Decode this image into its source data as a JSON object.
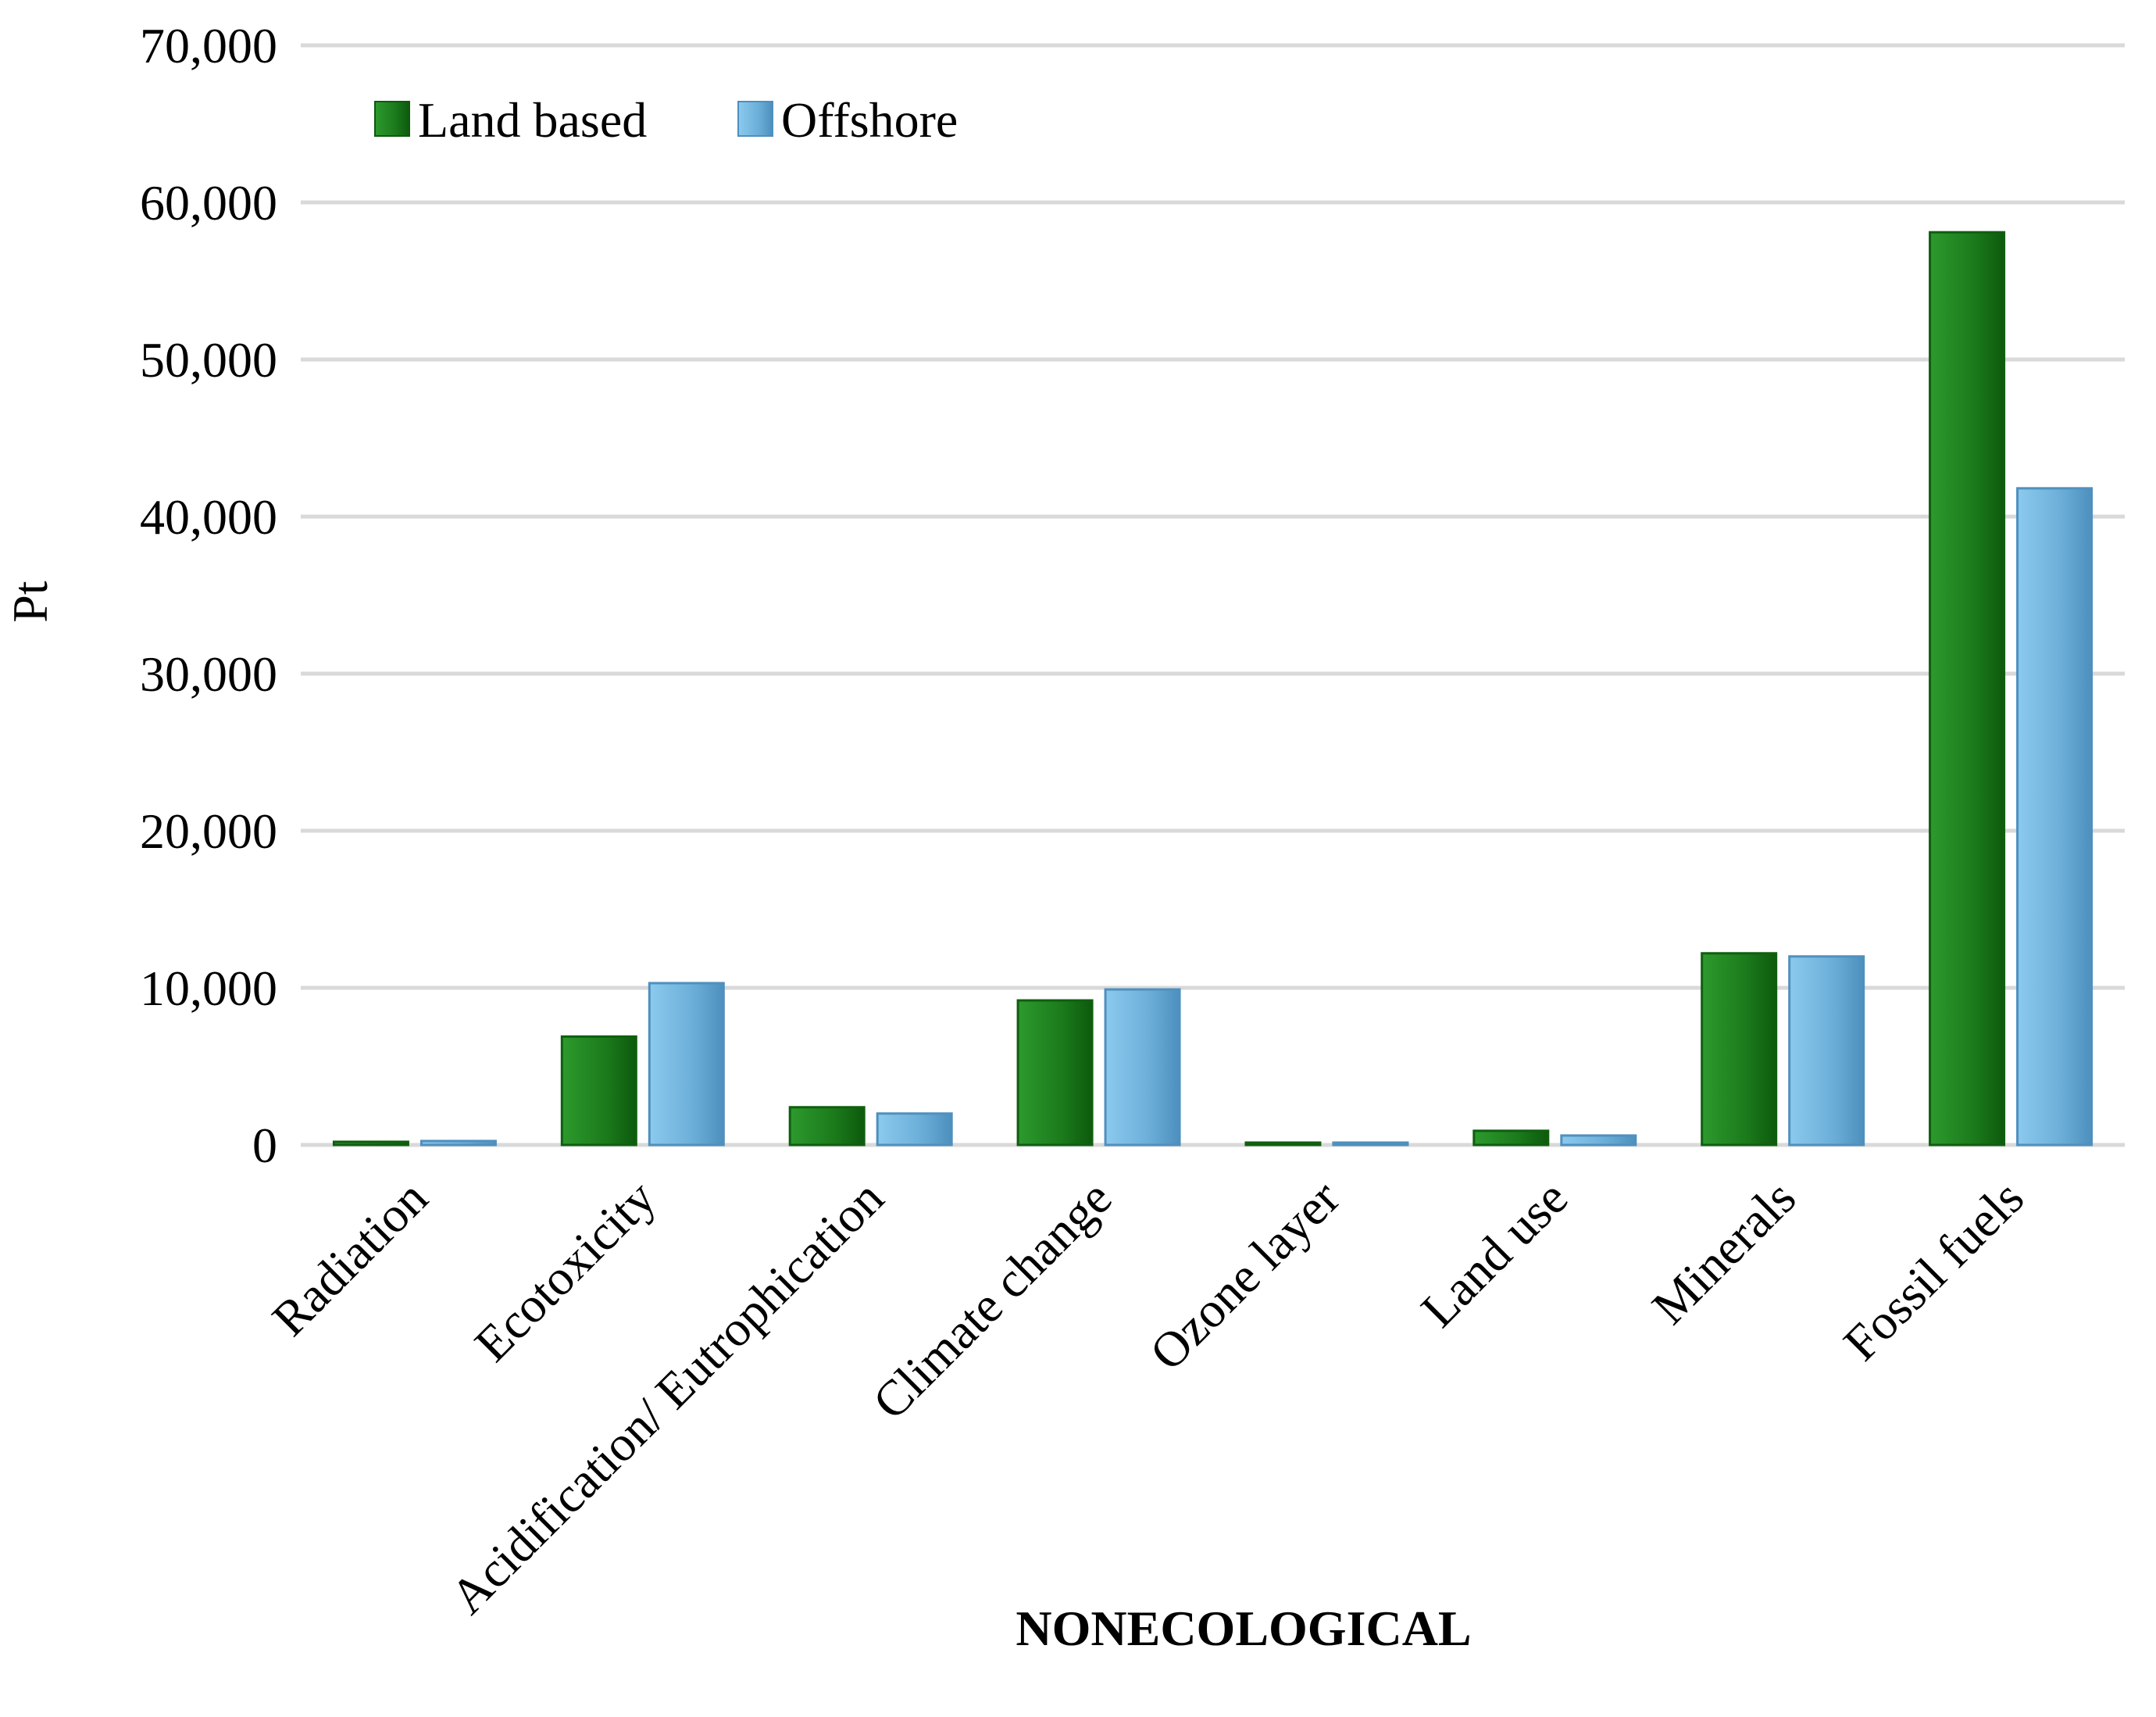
{
  "chart_data": {
    "type": "bar",
    "title": "",
    "xlabel": "NONECOLOGICAL",
    "ylabel": "Pt",
    "ylim": [
      0,
      70000
    ],
    "yticks": [
      0,
      10000,
      20000,
      30000,
      40000,
      50000,
      60000,
      70000
    ],
    "ytick_labels": [
      "0",
      "10,000",
      "20,000",
      "30,000",
      "40,000",
      "50,000",
      "60,000",
      "70,000"
    ],
    "grid": true,
    "legend_position": "top-left",
    "categories": [
      "Radiation",
      "Ecotoxicity",
      "Acidification/ Eutrophication",
      "Climate change",
      "Ozone layer",
      "Land use",
      "Minerals",
      "Fossil fuels"
    ],
    "series": [
      {
        "name": "Land based",
        "color": "#1e7d1e",
        "values": [
          200,
          6900,
          2400,
          9200,
          50,
          900,
          12200,
          58100
        ]
      },
      {
        "name": "Offshore",
        "color": "#72b6e0",
        "values": [
          250,
          10300,
          2000,
          9900,
          50,
          600,
          12000,
          41800
        ]
      }
    ]
  }
}
